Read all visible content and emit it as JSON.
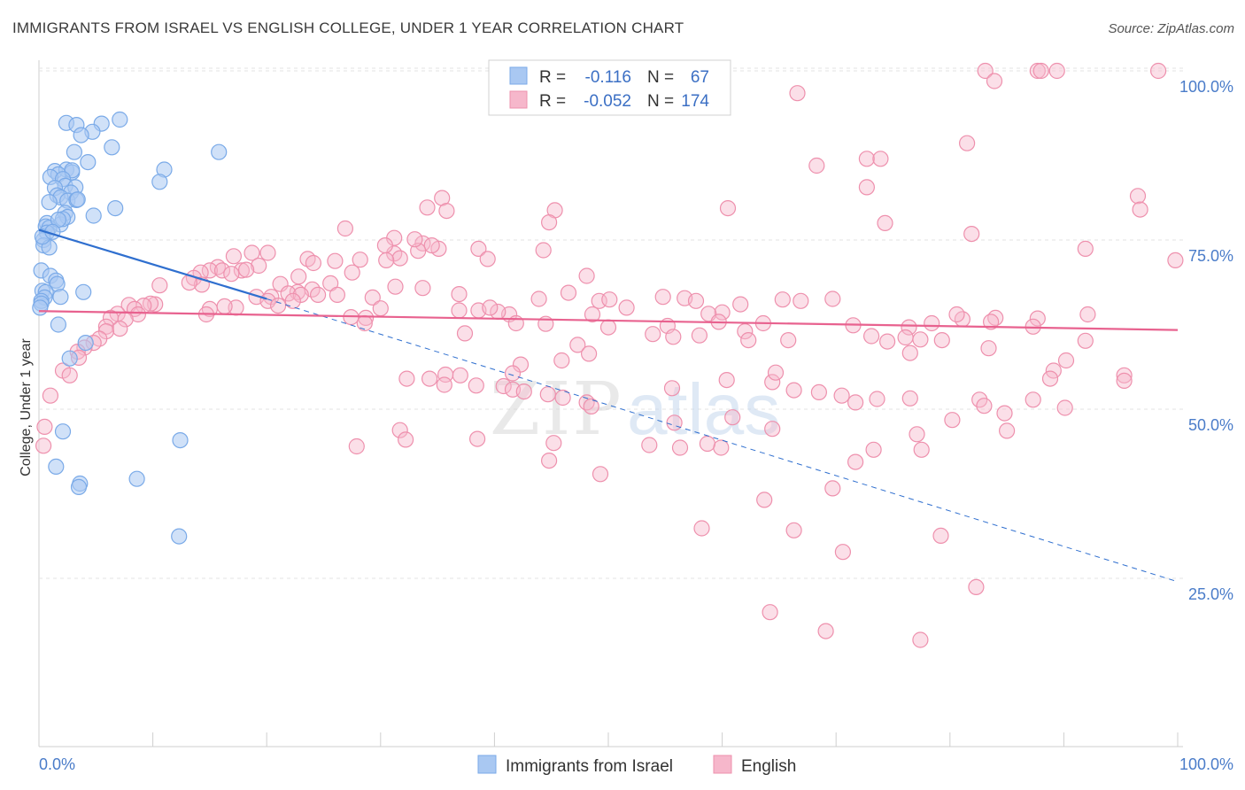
{
  "title": "IMMIGRANTS FROM ISRAEL VS ENGLISH COLLEGE, UNDER 1 YEAR CORRELATION CHART",
  "source": "Source: ZipAtlas.com",
  "watermark": "ZIPatlas",
  "chart_data": {
    "type": "scatter",
    "title": "IMMIGRANTS FROM ISRAEL VS ENGLISH COLLEGE, UNDER 1 YEAR CORRELATION CHART",
    "xlabel": "",
    "ylabel": "College, Under 1 year",
    "xlim": [
      0,
      100
    ],
    "ylim": [
      0,
      105
    ],
    "x_ticks": [
      "0.0%",
      "100.0%"
    ],
    "y_ticks": [
      {
        "value": 25,
        "label": "25.0%"
      },
      {
        "value": 50,
        "label": "50.0%"
      },
      {
        "value": 75,
        "label": "75.0%"
      },
      {
        "value": 100,
        "label": "100.0%"
      }
    ],
    "legend": {
      "rows": [
        {
          "r_label": "R =",
          "r_value": "-0.116",
          "n_label": "N =",
          "n_value": "67"
        },
        {
          "r_label": "R =",
          "r_value": "-0.052",
          "n_label": "N =",
          "n_value": "174"
        }
      ]
    },
    "series": [
      {
        "name": "Immigrants from Israel",
        "color": "#7aaae8",
        "fill": "#a9c8f2",
        "trend": {
          "x0": 0,
          "y0": 76.5,
          "x1": 20,
          "y1": 66.3,
          "dash_x1": 100,
          "dash_y1": 24.5,
          "color": "#2f6fcf"
        },
        "points": [
          [
            2.4,
            92.3
          ],
          [
            3.3,
            92.0
          ],
          [
            5.5,
            92.2
          ],
          [
            7.1,
            92.8
          ],
          [
            4.7,
            91.0
          ],
          [
            3.7,
            90.5
          ],
          [
            6.4,
            88.7
          ],
          [
            3.1,
            88.0
          ],
          [
            4.3,
            86.5
          ],
          [
            1.4,
            85.2
          ],
          [
            2.4,
            85.4
          ],
          [
            2.9,
            85.0
          ],
          [
            2.9,
            85.3
          ],
          [
            1.7,
            84.7
          ],
          [
            1.0,
            84.3
          ],
          [
            2.1,
            84.0
          ],
          [
            11.0,
            85.4
          ],
          [
            10.6,
            83.6
          ],
          [
            2.3,
            83.0
          ],
          [
            3.2,
            82.8
          ],
          [
            1.4,
            82.7
          ],
          [
            2.8,
            82.0
          ],
          [
            1.6,
            81.6
          ],
          [
            1.9,
            81.3
          ],
          [
            2.5,
            80.8
          ],
          [
            3.3,
            80.9
          ],
          [
            3.4,
            81.0
          ],
          [
            0.9,
            80.6
          ],
          [
            6.7,
            79.7
          ],
          [
            2.3,
            79.0
          ],
          [
            0.7,
            77.5
          ],
          [
            0.6,
            77.0
          ],
          [
            1.9,
            77.3
          ],
          [
            0.9,
            76.8
          ],
          [
            2.5,
            78.4
          ],
          [
            4.8,
            78.6
          ],
          [
            2.1,
            78.1
          ],
          [
            1.7,
            78.0
          ],
          [
            0.7,
            76.1
          ],
          [
            0.4,
            75.0
          ],
          [
            0.4,
            74.2
          ],
          [
            0.9,
            73.9
          ],
          [
            0.2,
            70.5
          ],
          [
            1.0,
            69.7
          ],
          [
            1.5,
            69.0
          ],
          [
            1.6,
            68.5
          ],
          [
            0.3,
            67.5
          ],
          [
            0.6,
            67.3
          ],
          [
            3.9,
            67.3
          ],
          [
            0.5,
            66.5
          ],
          [
            1.9,
            66.6
          ],
          [
            0.2,
            66.0
          ],
          [
            0.2,
            65.6
          ],
          [
            1.7,
            62.5
          ],
          [
            4.1,
            59.8
          ],
          [
            2.7,
            57.5
          ],
          [
            2.1,
            46.7
          ],
          [
            12.4,
            45.4
          ],
          [
            1.5,
            41.5
          ],
          [
            8.6,
            39.7
          ],
          [
            3.6,
            39.0
          ],
          [
            3.5,
            38.5
          ],
          [
            12.3,
            31.2
          ],
          [
            15.8,
            88.0
          ],
          [
            0.3,
            75.5
          ],
          [
            1.2,
            76.2
          ],
          [
            0.1,
            65.0
          ]
        ]
      },
      {
        "name": "English",
        "color": "#ee90ad",
        "fill": "#f6b7cb",
        "trend": {
          "x0": 0,
          "y0": 64.5,
          "x1": 100,
          "y1": 61.7,
          "color": "#e8628f"
        },
        "points": [
          [
            83.1,
            100.0
          ],
          [
            87.7,
            100.0
          ],
          [
            88.0,
            100.0
          ],
          [
            89.4,
            100.0
          ],
          [
            98.3,
            100.0
          ],
          [
            83.9,
            98.5
          ],
          [
            66.6,
            96.7
          ],
          [
            81.5,
            89.3
          ],
          [
            72.7,
            87.0
          ],
          [
            73.9,
            87.0
          ],
          [
            68.3,
            86.0
          ],
          [
            72.7,
            82.8
          ],
          [
            74.3,
            77.5
          ],
          [
            96.5,
            81.5
          ],
          [
            91.9,
            73.7
          ],
          [
            96.7,
            79.5
          ],
          [
            99.8,
            72.0
          ],
          [
            81.9,
            75.9
          ],
          [
            35.4,
            81.2
          ],
          [
            35.8,
            79.3
          ],
          [
            34.1,
            79.8
          ],
          [
            60.5,
            79.7
          ],
          [
            45.3,
            79.4
          ],
          [
            44.8,
            77.6
          ],
          [
            26.9,
            76.7
          ],
          [
            31.2,
            73.0
          ],
          [
            33.7,
            74.5
          ],
          [
            35.1,
            73.7
          ],
          [
            34.5,
            74.2
          ],
          [
            33.3,
            73.4
          ],
          [
            31.7,
            72.3
          ],
          [
            33.0,
            75.1
          ],
          [
            31.2,
            75.3
          ],
          [
            30.4,
            74.2
          ],
          [
            38.6,
            73.7
          ],
          [
            39.4,
            72.2
          ],
          [
            44.3,
            73.5
          ],
          [
            23.6,
            72.2
          ],
          [
            18.7,
            73.1
          ],
          [
            20.1,
            73.1
          ],
          [
            17.1,
            72.6
          ],
          [
            17.8,
            70.5
          ],
          [
            15.7,
            71.0
          ],
          [
            15.0,
            70.5
          ],
          [
            16.1,
            70.5
          ],
          [
            19.3,
            71.2
          ],
          [
            18.2,
            70.6
          ],
          [
            14.2,
            70.2
          ],
          [
            16.9,
            70.0
          ],
          [
            13.6,
            69.4
          ],
          [
            14.3,
            68.4
          ],
          [
            13.2,
            68.7
          ],
          [
            10.6,
            68.3
          ],
          [
            24.1,
            71.6
          ],
          [
            28.2,
            72.1
          ],
          [
            30.5,
            72.0
          ],
          [
            26.0,
            71.9
          ],
          [
            27.5,
            70.2
          ],
          [
            22.8,
            69.6
          ],
          [
            25.6,
            68.6
          ],
          [
            31.3,
            68.1
          ],
          [
            24.0,
            67.7
          ],
          [
            22.7,
            67.3
          ],
          [
            21.2,
            68.5
          ],
          [
            21.9,
            67.1
          ],
          [
            24.5,
            66.9
          ],
          [
            29.3,
            66.5
          ],
          [
            33.7,
            67.9
          ],
          [
            36.9,
            67.0
          ],
          [
            26.2,
            66.9
          ],
          [
            23.0,
            66.9
          ],
          [
            20.4,
            66.6
          ],
          [
            19.1,
            66.6
          ],
          [
            22.3,
            66.0
          ],
          [
            20.1,
            66.0
          ],
          [
            21.0,
            65.3
          ],
          [
            17.3,
            65.0
          ],
          [
            16.3,
            65.2
          ],
          [
            15.0,
            64.8
          ],
          [
            14.7,
            64.0
          ],
          [
            10.2,
            65.5
          ],
          [
            9.8,
            65.6
          ],
          [
            9.2,
            65.3
          ],
          [
            7.9,
            65.4
          ],
          [
            8.4,
            64.8
          ],
          [
            8.7,
            64.0
          ],
          [
            6.9,
            64.1
          ],
          [
            6.3,
            63.5
          ],
          [
            7.6,
            63.3
          ],
          [
            5.9,
            62.2
          ],
          [
            7.1,
            61.9
          ],
          [
            5.9,
            61.5
          ],
          [
            5.3,
            60.4
          ],
          [
            4.8,
            59.8
          ],
          [
            4.0,
            59.1
          ],
          [
            3.4,
            58.5
          ],
          [
            3.5,
            57.6
          ],
          [
            2.1,
            55.7
          ],
          [
            1.0,
            52.0
          ],
          [
            0.5,
            47.4
          ],
          [
            0.4,
            44.6
          ],
          [
            2.7,
            55.0
          ],
          [
            48.1,
            69.7
          ],
          [
            46.5,
            67.2
          ],
          [
            43.9,
            66.3
          ],
          [
            49.2,
            66.0
          ],
          [
            50.1,
            66.2
          ],
          [
            51.6,
            65.0
          ],
          [
            54.8,
            66.6
          ],
          [
            56.7,
            66.4
          ],
          [
            57.7,
            66.0
          ],
          [
            61.6,
            65.5
          ],
          [
            66.9,
            66.0
          ],
          [
            69.7,
            66.3
          ],
          [
            65.3,
            66.2
          ],
          [
            60.0,
            64.3
          ],
          [
            58.8,
            64.1
          ],
          [
            59.7,
            62.9
          ],
          [
            62.0,
            61.5
          ],
          [
            48.6,
            64.0
          ],
          [
            41.3,
            64.0
          ],
          [
            40.3,
            64.4
          ],
          [
            38.6,
            64.6
          ],
          [
            36.9,
            64.6
          ],
          [
            39.6,
            65.0
          ],
          [
            30.0,
            64.9
          ],
          [
            28.7,
            63.5
          ],
          [
            27.4,
            63.6
          ],
          [
            28.6,
            62.7
          ],
          [
            41.9,
            62.7
          ],
          [
            44.5,
            62.6
          ],
          [
            50.0,
            62.1
          ],
          [
            55.2,
            62.3
          ],
          [
            63.6,
            62.7
          ],
          [
            71.5,
            62.4
          ],
          [
            76.4,
            62.1
          ],
          [
            78.4,
            62.7
          ],
          [
            81.1,
            63.3
          ],
          [
            80.6,
            64.0
          ],
          [
            84.0,
            63.5
          ],
          [
            83.6,
            62.9
          ],
          [
            37.4,
            61.2
          ],
          [
            53.9,
            61.1
          ],
          [
            55.7,
            60.7
          ],
          [
            58.0,
            60.9
          ],
          [
            62.3,
            60.2
          ],
          [
            65.8,
            60.2
          ],
          [
            73.1,
            60.8
          ],
          [
            74.5,
            60.0
          ],
          [
            76.1,
            60.6
          ],
          [
            77.4,
            60.3
          ],
          [
            79.3,
            60.2
          ],
          [
            83.4,
            59.0
          ],
          [
            76.5,
            58.3
          ],
          [
            47.3,
            59.5
          ],
          [
            48.3,
            58.2
          ],
          [
            45.9,
            57.2
          ],
          [
            42.3,
            56.6
          ],
          [
            41.6,
            55.3
          ],
          [
            37.0,
            55.0
          ],
          [
            35.7,
            55.1
          ],
          [
            34.3,
            54.5
          ],
          [
            32.3,
            54.5
          ],
          [
            35.6,
            53.6
          ],
          [
            38.4,
            53.5
          ],
          [
            40.8,
            53.4
          ],
          [
            41.6,
            52.9
          ],
          [
            42.6,
            52.6
          ],
          [
            44.7,
            52.2
          ],
          [
            46.0,
            51.7
          ],
          [
            48.1,
            51.0
          ],
          [
            48.5,
            50.4
          ],
          [
            55.6,
            53.1
          ],
          [
            60.4,
            54.3
          ],
          [
            64.4,
            54.0
          ],
          [
            64.7,
            55.4
          ],
          [
            66.3,
            52.8
          ],
          [
            68.5,
            52.5
          ],
          [
            70.5,
            52.0
          ],
          [
            71.7,
            51.0
          ],
          [
            73.6,
            51.5
          ],
          [
            76.5,
            51.6
          ],
          [
            82.6,
            51.4
          ],
          [
            87.3,
            51.4
          ],
          [
            89.1,
            55.7
          ],
          [
            88.8,
            54.5
          ],
          [
            90.2,
            57.2
          ],
          [
            87.7,
            63.4
          ],
          [
            91.9,
            60.1
          ],
          [
            87.3,
            62.2
          ],
          [
            92.1,
            64.0
          ],
          [
            95.3,
            55.0
          ],
          [
            95.3,
            54.2
          ],
          [
            90.1,
            50.2
          ],
          [
            84.8,
            49.4
          ],
          [
            85.0,
            46.8
          ],
          [
            83.0,
            50.5
          ],
          [
            80.2,
            48.4
          ],
          [
            77.1,
            46.3
          ],
          [
            77.5,
            44.0
          ],
          [
            71.7,
            42.2
          ],
          [
            69.7,
            38.3
          ],
          [
            59.9,
            44.3
          ],
          [
            56.3,
            44.3
          ],
          [
            53.6,
            44.7
          ],
          [
            49.3,
            40.4
          ],
          [
            44.8,
            42.4
          ],
          [
            45.2,
            45.0
          ],
          [
            38.5,
            45.6
          ],
          [
            31.7,
            46.9
          ],
          [
            32.2,
            45.5
          ],
          [
            27.9,
            44.5
          ],
          [
            55.8,
            48.0
          ],
          [
            58.7,
            44.9
          ],
          [
            60.9,
            48.8
          ],
          [
            64.4,
            47.1
          ],
          [
            73.3,
            44.0
          ],
          [
            79.2,
            31.3
          ],
          [
            70.6,
            28.9
          ],
          [
            66.3,
            32.1
          ],
          [
            63.7,
            36.6
          ],
          [
            58.2,
            32.4
          ],
          [
            64.2,
            20.0
          ],
          [
            69.1,
            17.2
          ],
          [
            77.4,
            15.9
          ],
          [
            82.3,
            23.7
          ]
        ]
      }
    ]
  },
  "bottom_legend": {
    "items": [
      {
        "label": "Immigrants from Israel"
      },
      {
        "label": "English"
      }
    ]
  }
}
